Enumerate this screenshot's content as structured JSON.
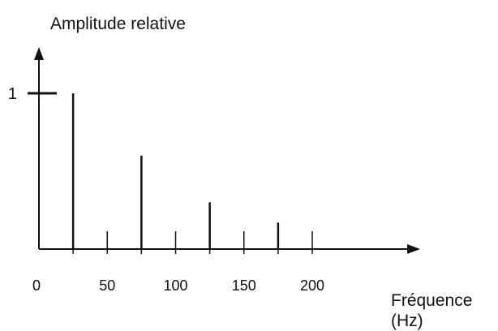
{
  "chart_data": {
    "type": "bar",
    "title": "",
    "ylabel": "Amplitude relative",
    "xlabel_line1": "Fréquence",
    "xlabel_line2": "(Hz)",
    "xlim": [
      0,
      280
    ],
    "ylim": [
      0,
      1.15
    ],
    "grid": false,
    "x_ticks": [
      0,
      50,
      100,
      150,
      200
    ],
    "x_tick_labels": [
      "0",
      "50",
      "100",
      "150",
      "200"
    ],
    "y_ticks": [
      1
    ],
    "y_tick_labels": [
      "1"
    ],
    "series": [
      {
        "x": [
          25,
          75,
          125,
          175
        ],
        "values": [
          1.0,
          0.6,
          0.3,
          0.17
        ]
      }
    ]
  }
}
